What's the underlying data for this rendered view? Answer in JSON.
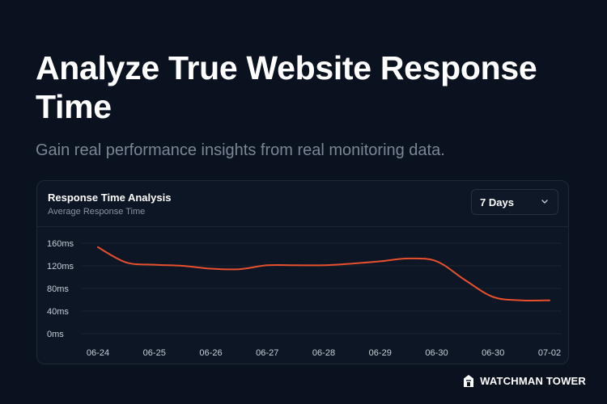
{
  "hero": {
    "title": "Analyze True Website Response Time",
    "subtitle": "Gain real performance insights from real monitoring data."
  },
  "card": {
    "title": "Response Time Analysis",
    "subtitle": "Average Response Time",
    "range_select": {
      "value": "7 Days",
      "icon": "chevron-down-icon"
    }
  },
  "chart_data": {
    "type": "line",
    "title": "Response Time Analysis",
    "subtitle": "Average Response Time",
    "x": [
      "06-24",
      "06-25",
      "06-26",
      "06-27",
      "06-28",
      "06-29",
      "06-30",
      "06-30",
      "07-02"
    ],
    "y_ticks": [
      "160ms",
      "120ms",
      "80ms",
      "40ms",
      "0ms"
    ],
    "ylim": [
      0,
      160
    ],
    "grid": true,
    "color": "#e8502d",
    "series": [
      {
        "points": [
          [
            0,
            153
          ],
          [
            0.5,
            126
          ],
          [
            1,
            122
          ],
          [
            1.5,
            120
          ],
          [
            2,
            115
          ],
          [
            2.5,
            114
          ],
          [
            3,
            121
          ],
          [
            3.5,
            121
          ],
          [
            4,
            121
          ],
          [
            4.5,
            124
          ],
          [
            5,
            128
          ],
          [
            5.5,
            133
          ],
          [
            6,
            128
          ],
          [
            6.5,
            95
          ],
          [
            7,
            65
          ],
          [
            7.5,
            59
          ],
          [
            8,
            59
          ]
        ]
      }
    ]
  },
  "footer": {
    "brand": "WATCHMAN TOWER",
    "logo_icon": "tower-logo-icon"
  },
  "colors": {
    "background": "#0a1220",
    "card": "#0d1624",
    "accent": "#e8502d",
    "muted_text": "#7c8594"
  }
}
